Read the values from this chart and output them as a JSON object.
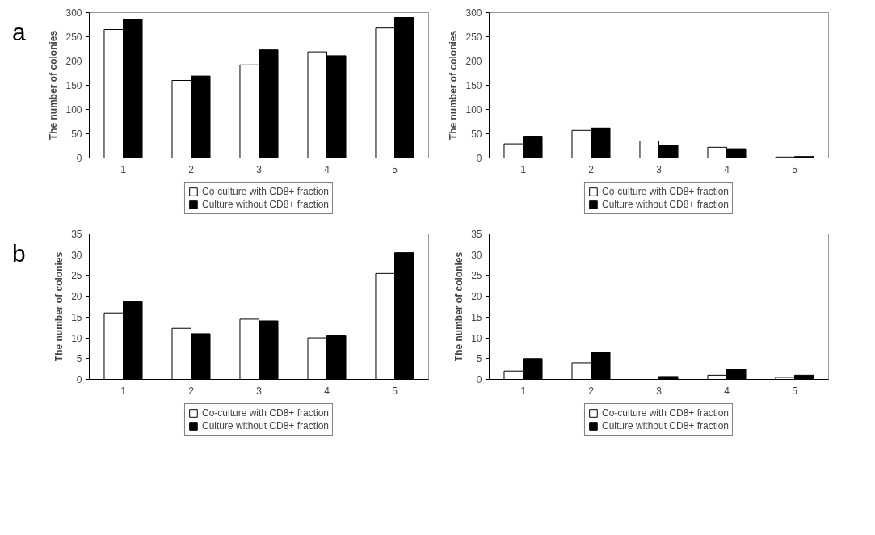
{
  "chart_data": [
    {
      "type": "bar",
      "annotations": [
        "a"
      ],
      "ylabel": "The number of colonies",
      "categories": [
        "1",
        "2",
        "3",
        "4",
        "5"
      ],
      "ylim": [
        0,
        300
      ],
      "yticks": [
        0,
        50,
        100,
        150,
        200,
        250,
        300
      ],
      "legend": "bottom",
      "series": [
        {
          "name": "Co-culture with CD8+ fraction",
          "color": "#ffffff",
          "values": [
            265,
            160,
            192,
            219,
            268
          ]
        },
        {
          "name": "Culture without CD8+ fraction",
          "color": "#000000",
          "values": [
            286,
            169,
            223,
            211,
            290
          ]
        }
      ]
    },
    {
      "type": "bar",
      "ylabel": "The number of colonies",
      "categories": [
        "1",
        "2",
        "3",
        "4",
        "5"
      ],
      "ylim": [
        0,
        300
      ],
      "yticks": [
        0,
        50,
        100,
        150,
        200,
        250,
        300
      ],
      "legend": "bottom",
      "series": [
        {
          "name": "Co-culture with CD8+ fraction",
          "color": "#ffffff",
          "values": [
            29,
            57,
            35,
            22,
            2
          ]
        },
        {
          "name": "Culture without CD8+ fraction",
          "color": "#000000",
          "values": [
            45,
            62,
            26,
            19,
            3
          ]
        }
      ]
    },
    {
      "type": "bar",
      "annotations": [
        "b"
      ],
      "ylabel": "The number of colonies",
      "categories": [
        "1",
        "2",
        "3",
        "4",
        "5"
      ],
      "ylim": [
        0,
        35
      ],
      "yticks": [
        0,
        5,
        10,
        15,
        20,
        25,
        30,
        35
      ],
      "legend": "bottom",
      "series": [
        {
          "name": "Co-culture with CD8+ fraction",
          "color": "#ffffff",
          "values": [
            16,
            12.3,
            14.5,
            10,
            25.5
          ]
        },
        {
          "name": "Culture without CD8+ fraction",
          "color": "#000000",
          "values": [
            18.7,
            11,
            14.1,
            10.5,
            30.5
          ]
        }
      ]
    },
    {
      "type": "bar",
      "ylabel": "The number of colonies",
      "categories": [
        "1",
        "2",
        "3",
        "4",
        "5"
      ],
      "ylim": [
        0,
        35
      ],
      "yticks": [
        0,
        5,
        10,
        15,
        20,
        25,
        30,
        35
      ],
      "legend": "bottom",
      "series": [
        {
          "name": "Co-culture with CD8+ fraction",
          "color": "#ffffff",
          "values": [
            2,
            4,
            0,
            1,
            0.5
          ]
        },
        {
          "name": "Culture without CD8+ fraction",
          "color": "#000000",
          "values": [
            5,
            6.5,
            0.7,
            2.5,
            1
          ]
        }
      ]
    }
  ]
}
